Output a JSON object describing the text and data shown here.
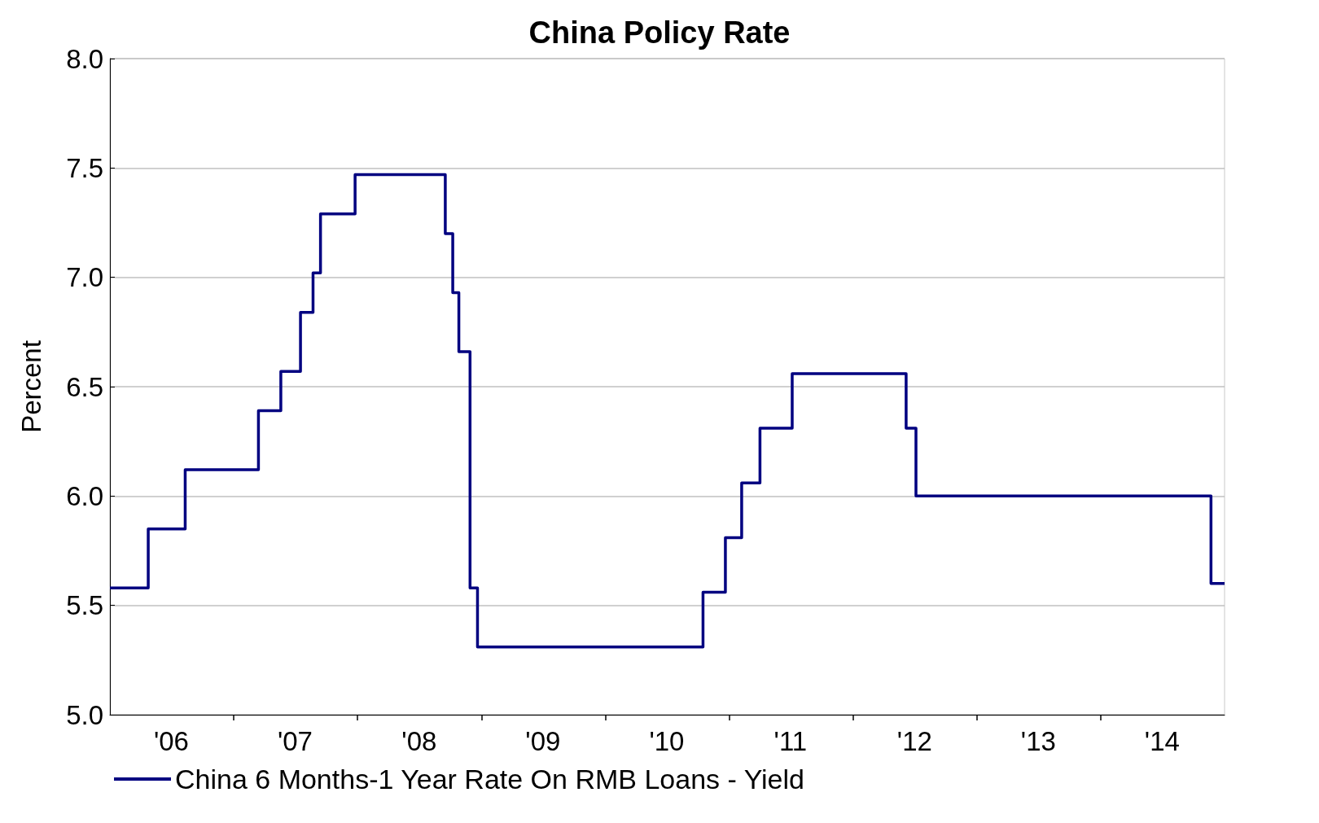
{
  "chart_data": {
    "type": "step",
    "title": "China Policy Rate",
    "ylabel": "Percent",
    "x": [
      "2006-01-01",
      "2006-04-24",
      "2006-08-11",
      "2007-03-15",
      "2007-05-20",
      "2007-07-17",
      "2007-08-23",
      "2007-09-14",
      "2007-12-25",
      "2008-09-16",
      "2008-10-08",
      "2008-10-26",
      "2008-11-28",
      "2008-12-20",
      "2010-10-16",
      "2010-12-21",
      "2011-02-07",
      "2011-04-02",
      "2011-07-06",
      "2012-06-06",
      "2012-07-05",
      "2014-11-22",
      "2015-01-01"
    ],
    "series": [
      {
        "name": "China 6 Months-1 Year Rate On RMB Loans - Yield",
        "color": "#000080",
        "values": [
          5.58,
          5.85,
          6.12,
          6.39,
          6.57,
          6.84,
          7.02,
          7.29,
          7.47,
          7.2,
          6.93,
          6.66,
          5.58,
          5.31,
          5.56,
          5.81,
          6.06,
          6.31,
          6.56,
          6.31,
          6.0,
          5.6,
          5.6
        ]
      }
    ],
    "xlim": [
      "2006-01-01",
      "2015-01-01"
    ],
    "xticks": [
      {
        "value": "2006-07-01",
        "label": "'06"
      },
      {
        "value": "2007-01-01",
        "label": null
      },
      {
        "value": "2007-07-01",
        "label": "'07"
      },
      {
        "value": "2008-01-01",
        "label": null
      },
      {
        "value": "2008-07-01",
        "label": "'08"
      },
      {
        "value": "2009-01-01",
        "label": null
      },
      {
        "value": "2009-07-01",
        "label": "'09"
      },
      {
        "value": "2010-01-01",
        "label": null
      },
      {
        "value": "2010-07-01",
        "label": "'10"
      },
      {
        "value": "2011-01-01",
        "label": null
      },
      {
        "value": "2011-07-01",
        "label": "'11"
      },
      {
        "value": "2012-01-01",
        "label": null
      },
      {
        "value": "2012-07-01",
        "label": "'12"
      },
      {
        "value": "2013-01-01",
        "label": null
      },
      {
        "value": "2013-07-01",
        "label": "'13"
      },
      {
        "value": "2014-01-01",
        "label": null
      },
      {
        "value": "2014-07-01",
        "label": "'14"
      }
    ],
    "ylim": [
      5.0,
      8.0
    ],
    "yticks": [
      {
        "value": 5.0,
        "label": "5.0"
      },
      {
        "value": 5.5,
        "label": "5.5"
      },
      {
        "value": 6.0,
        "label": "6.0"
      },
      {
        "value": 6.5,
        "label": "6.5"
      },
      {
        "value": 7.0,
        "label": "7.0"
      },
      {
        "value": 7.5,
        "label": "7.5"
      },
      {
        "value": 8.0,
        "label": "8.0"
      }
    ],
    "grid": "y",
    "legend": "bottom left",
    "marker": "none",
    "line_style": "solid"
  }
}
